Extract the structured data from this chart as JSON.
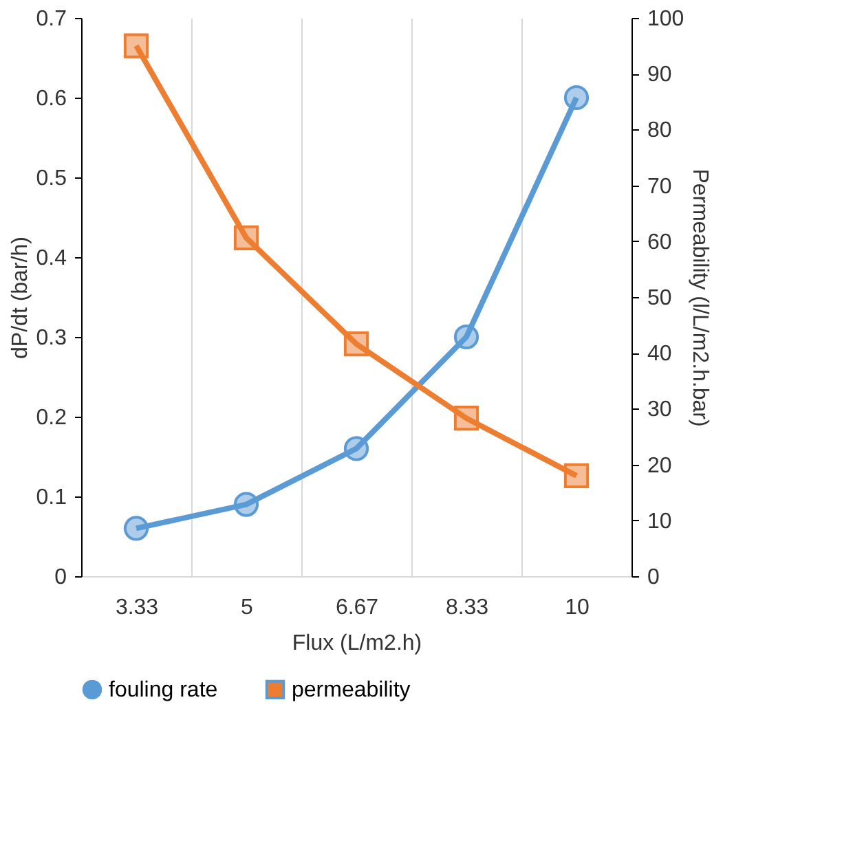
{
  "chart_data": {
    "type": "line",
    "xlabel": "Flux (L/m2.h)",
    "ylabel": "dP/dt (bar/h)",
    "y2label": "Permeability (l/L/m2.h.bar)",
    "categories": [
      "3.33",
      "5",
      "6.67",
      "8.33",
      "10"
    ],
    "series": [
      {
        "name": "fouling rate",
        "color": "#5b9bd5",
        "marker": "circle",
        "values": [
          0.06,
          0.09,
          0.16,
          0.3,
          0.6
        ]
      },
      {
        "name": "permeability",
        "color": "#ed7d31",
        "marker": "square",
        "axis": "y2",
        "values": [
          95,
          60.6,
          41.6,
          28.3,
          18
        ]
      }
    ],
    "ylim": [
      0,
      0.7
    ],
    "yticks": [
      0,
      0.1,
      0.2,
      0.3,
      0.4,
      0.5,
      0.6,
      0.7
    ],
    "y2lim": [
      0,
      100
    ],
    "y2ticks": [
      0,
      10,
      20,
      30,
      40,
      50,
      60,
      70,
      80,
      90,
      100
    ],
    "grid": "x",
    "legend": "bottom",
    "line_style": "solid"
  }
}
